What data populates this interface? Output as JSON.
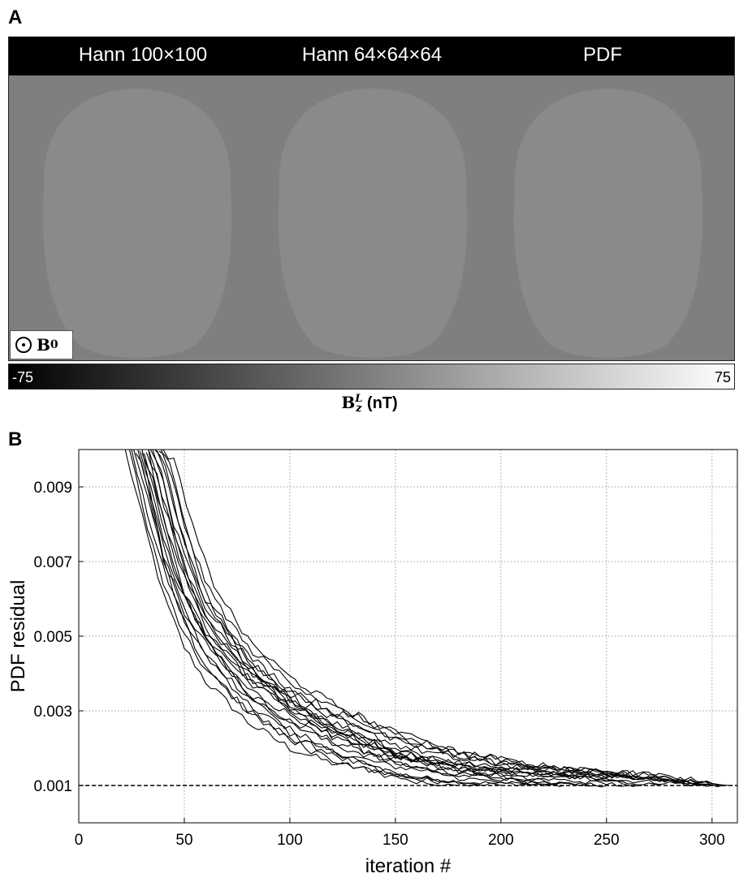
{
  "panel_a": {
    "letter": "A",
    "columns": [
      "Hann 100×100",
      "Hann 64×64×64",
      "PDF"
    ],
    "b0_label": "B",
    "b0_sub": "0",
    "colorbar": {
      "min_label": "-75",
      "max_label": "75",
      "label_main": "B",
      "label_sup": "L",
      "label_sub": "z",
      "label_unit": "(nT)",
      "colors": [
        "#000000",
        "#ffffff"
      ]
    }
  },
  "panel_b": {
    "letter": "B"
  },
  "chart_data": {
    "type": "line",
    "title": "",
    "xlabel": "iteration #",
    "ylabel": "PDF residual",
    "xlim": [
      0,
      312
    ],
    "ylim": [
      0,
      0.01
    ],
    "xticks": [
      0,
      50,
      100,
      150,
      200,
      250,
      300
    ],
    "yticks": [
      0.001,
      0.003,
      0.005,
      0.007,
      0.009
    ],
    "ytick_labels": [
      "0.001",
      "0.003",
      "0.005",
      "0.007",
      "0.009"
    ],
    "grid": true,
    "line_color": "#000000",
    "threshold": {
      "y": 0.001,
      "style": "dashed"
    },
    "series": [
      {
        "x": [
          22,
          30,
          40,
          50,
          60,
          80,
          100,
          120,
          150,
          180,
          200,
          230
        ],
        "values": [
          0.01,
          0.0082,
          0.0061,
          0.0047,
          0.0038,
          0.0027,
          0.002,
          0.0016,
          0.0013,
          0.0011,
          0.00105,
          0.001
        ]
      },
      {
        "x": [
          24,
          30,
          40,
          50,
          60,
          80,
          100,
          120,
          150,
          180,
          200,
          220,
          250
        ],
        "values": [
          0.01,
          0.0085,
          0.0064,
          0.005,
          0.0041,
          0.003,
          0.0023,
          0.0019,
          0.0015,
          0.0013,
          0.0012,
          0.00108,
          0.001
        ]
      },
      {
        "x": [
          25,
          30,
          40,
          50,
          60,
          80,
          100,
          120,
          150,
          180,
          210,
          240,
          270,
          300
        ],
        "values": [
          0.01,
          0.0088,
          0.0068,
          0.0054,
          0.0045,
          0.0034,
          0.0027,
          0.0022,
          0.0017,
          0.0015,
          0.0013,
          0.0012,
          0.0011,
          0.001
        ]
      },
      {
        "x": [
          26,
          30,
          40,
          50,
          60,
          80,
          100,
          120,
          150,
          180,
          210,
          240,
          270,
          305
        ],
        "values": [
          0.01,
          0.0093,
          0.0071,
          0.0057,
          0.0048,
          0.0036,
          0.0029,
          0.0024,
          0.0018,
          0.0015,
          0.0014,
          0.0013,
          0.0012,
          0.001
        ]
      },
      {
        "x": [
          27,
          32,
          40,
          50,
          60,
          80,
          100,
          120,
          150,
          180,
          210,
          240,
          270,
          300,
          308
        ],
        "values": [
          0.01,
          0.0092,
          0.0074,
          0.006,
          0.005,
          0.0038,
          0.0031,
          0.0025,
          0.0019,
          0.0016,
          0.0014,
          0.0013,
          0.00125,
          0.0011,
          0.001
        ]
      },
      {
        "x": [
          28,
          33,
          40,
          50,
          60,
          80,
          100,
          120,
          150,
          175,
          200
        ],
        "values": [
          0.01,
          0.0088,
          0.0072,
          0.0056,
          0.0045,
          0.0032,
          0.0024,
          0.0018,
          0.0013,
          0.0011,
          0.001
        ]
      },
      {
        "x": [
          29,
          34,
          40,
          50,
          60,
          80,
          100,
          120,
          150,
          180,
          210,
          240,
          265
        ],
        "values": [
          0.01,
          0.009,
          0.0076,
          0.0061,
          0.0051,
          0.0039,
          0.0032,
          0.0026,
          0.0019,
          0.0015,
          0.0013,
          0.0012,
          0.001
        ]
      },
      {
        "x": [
          30,
          35,
          42,
          50,
          60,
          80,
          100,
          120,
          150,
          180,
          210,
          240,
          270,
          300
        ],
        "values": [
          0.01,
          0.0092,
          0.0078,
          0.0066,
          0.0054,
          0.004,
          0.0033,
          0.0027,
          0.002,
          0.0016,
          0.0014,
          0.0013,
          0.0012,
          0.001
        ]
      },
      {
        "x": [
          31,
          36,
          42,
          50,
          60,
          80,
          100,
          120,
          150,
          180,
          210,
          245
        ],
        "values": [
          0.01,
          0.0089,
          0.0075,
          0.0062,
          0.0049,
          0.0035,
          0.0027,
          0.0021,
          0.0016,
          0.0013,
          0.0011,
          0.001
        ]
      },
      {
        "x": [
          32,
          37,
          44,
          50,
          60,
          80,
          100,
          120,
          150,
          180,
          210,
          240,
          270,
          295
        ],
        "values": [
          0.01,
          0.0093,
          0.0079,
          0.0068,
          0.0056,
          0.0042,
          0.0034,
          0.0028,
          0.0021,
          0.0017,
          0.0015,
          0.0013,
          0.0012,
          0.001
        ]
      },
      {
        "x": [
          33,
          38,
          44,
          50,
          60,
          80,
          100,
          120,
          150,
          170,
          190
        ],
        "values": [
          0.01,
          0.0087,
          0.0073,
          0.0062,
          0.0049,
          0.0034,
          0.0025,
          0.0019,
          0.0013,
          0.0011,
          0.001
        ]
      },
      {
        "x": [
          34,
          39,
          45,
          52,
          60,
          80,
          100,
          120,
          150,
          180,
          210,
          240,
          270,
          300,
          306
        ],
        "values": [
          0.01,
          0.0094,
          0.008,
          0.0069,
          0.0058,
          0.0044,
          0.0035,
          0.0029,
          0.0022,
          0.0018,
          0.0015,
          0.0014,
          0.0013,
          0.0011,
          0.001
        ]
      },
      {
        "x": [
          35,
          40,
          46,
          52,
          60,
          80,
          100,
          120,
          150,
          180,
          210,
          240,
          260
        ],
        "values": [
          0.01,
          0.0091,
          0.0077,
          0.0066,
          0.0055,
          0.0041,
          0.0032,
          0.0025,
          0.0018,
          0.0014,
          0.0012,
          0.0011,
          0.001
        ]
      },
      {
        "x": [
          36,
          41,
          47,
          53,
          60,
          80,
          100,
          120,
          150,
          180,
          210,
          240,
          270,
          295
        ],
        "values": [
          0.01,
          0.0095,
          0.0081,
          0.007,
          0.006,
          0.0045,
          0.0036,
          0.003,
          0.0023,
          0.0018,
          0.0015,
          0.0014,
          0.0012,
          0.001
        ]
      },
      {
        "x": [
          37,
          42,
          48,
          55,
          62,
          80,
          100,
          120,
          150,
          180,
          215
        ],
        "values": [
          0.01,
          0.0092,
          0.0079,
          0.0067,
          0.0057,
          0.0042,
          0.0031,
          0.0023,
          0.0016,
          0.0012,
          0.001
        ]
      },
      {
        "x": [
          38,
          43,
          49,
          55,
          62,
          80,
          100,
          120,
          150,
          180,
          210,
          240,
          270,
          302
        ],
        "values": [
          0.01,
          0.0096,
          0.0083,
          0.0072,
          0.0062,
          0.0047,
          0.0038,
          0.0031,
          0.0024,
          0.0019,
          0.0016,
          0.0014,
          0.0013,
          0.001
        ]
      },
      {
        "x": [
          39,
          44,
          50,
          56,
          63,
          80,
          100,
          120,
          150,
          180,
          210,
          235
        ],
        "values": [
          0.01,
          0.0093,
          0.008,
          0.0069,
          0.0059,
          0.0044,
          0.0033,
          0.0026,
          0.0018,
          0.0014,
          0.0012,
          0.001
        ]
      },
      {
        "x": [
          40,
          45,
          51,
          57,
          64,
          80,
          100,
          120,
          150,
          180,
          210,
          240,
          270,
          290
        ],
        "values": [
          0.01,
          0.0097,
          0.0085,
          0.0074,
          0.0064,
          0.0049,
          0.0039,
          0.0032,
          0.0024,
          0.0019,
          0.0016,
          0.0014,
          0.0012,
          0.001
        ]
      },
      {
        "x": [
          30,
          35,
          40,
          50,
          60,
          80,
          100,
          120,
          150,
          165,
          180
        ],
        "values": [
          0.01,
          0.0085,
          0.007,
          0.0053,
          0.0042,
          0.003,
          0.0022,
          0.0017,
          0.0012,
          0.00105,
          0.001
        ]
      },
      {
        "x": [
          33,
          38,
          45,
          52,
          60,
          80,
          100,
          120,
          150,
          180,
          210,
          240,
          275
        ],
        "values": [
          0.01,
          0.009,
          0.0076,
          0.0064,
          0.0052,
          0.0039,
          0.003,
          0.0024,
          0.0018,
          0.0015,
          0.0013,
          0.0012,
          0.001
        ]
      }
    ]
  }
}
